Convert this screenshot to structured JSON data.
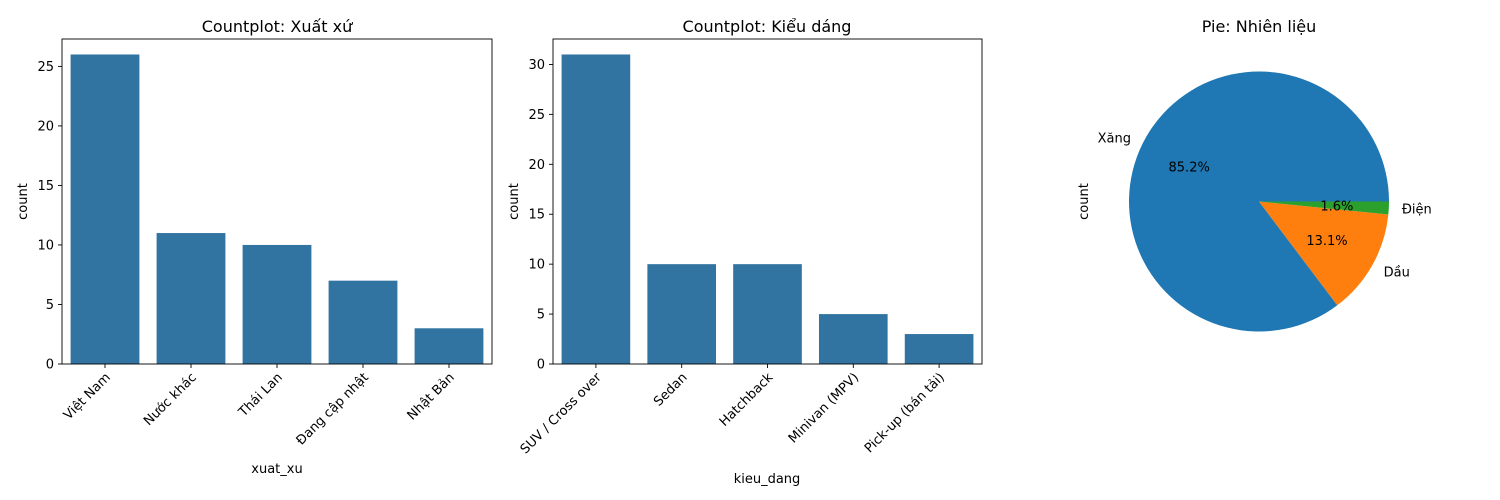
{
  "chart_data": [
    {
      "type": "bar",
      "title": "Countplot: Xuất xứ",
      "xlabel": "xuat_xu",
      "ylabel": "count",
      "categories": [
        "Việt Nam",
        "Nước khác",
        "Thái Lan",
        "Đang cập nhật",
        "Nhật Bản"
      ],
      "values": [
        26,
        11,
        10,
        7,
        3
      ],
      "ylim": [
        0,
        27.3
      ],
      "yticks": [
        0,
        5,
        10,
        15,
        20,
        25
      ],
      "color": "#3274a1"
    },
    {
      "type": "bar",
      "title": "Countplot: Kiểu dáng",
      "xlabel": "kieu_dang",
      "ylabel": "count",
      "categories": [
        "SUV / Cross over",
        "Sedan",
        "Hatchback",
        "Minivan (MPV)",
        "Pick-up (bán tải)"
      ],
      "values": [
        31,
        10,
        10,
        5,
        3
      ],
      "ylim": [
        0,
        32.55
      ],
      "yticks": [
        0,
        5,
        10,
        15,
        20,
        25,
        30
      ],
      "color": "#3274a1"
    },
    {
      "type": "pie",
      "title": "Pie: Nhiên liệu",
      "ylabel": "count",
      "labels": [
        "Xăng",
        "Dầu",
        "Điện"
      ],
      "values": [
        85.2,
        13.1,
        1.6
      ],
      "percent_labels": [
        "85.2%",
        "13.1%",
        "1.6%"
      ],
      "colors": [
        "#1f77b4",
        "#ff7f0e",
        "#2ca02c"
      ]
    }
  ]
}
